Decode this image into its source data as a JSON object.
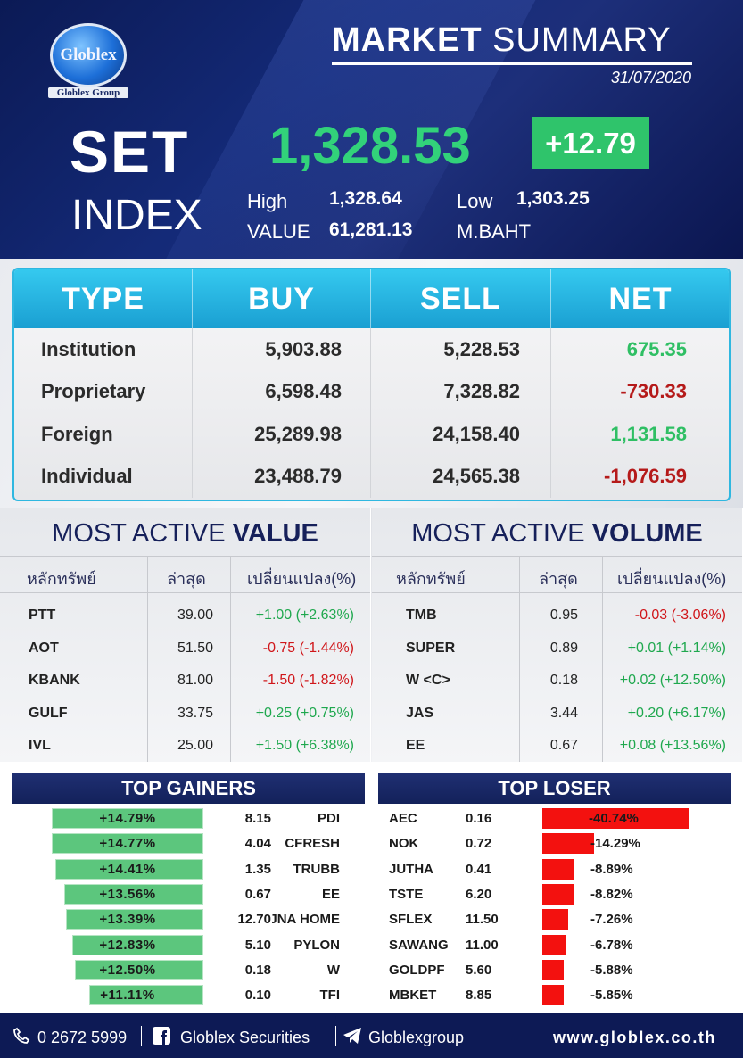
{
  "brand": {
    "logo_text": "Globlex",
    "group": "Globlex Group"
  },
  "header": {
    "title_bold": "MARKET",
    "title_rest": "SUMMARY",
    "date": "31/07/2020"
  },
  "index": {
    "label1": "SET",
    "label2": "INDEX",
    "value": "1,328.53",
    "change": "+12.79",
    "high_label": "High",
    "high": "1,328.64",
    "low_label": "Low",
    "low": "1,303.25",
    "value_label": "VALUE",
    "traded_value": "61,281.13",
    "unit": "M.BAHT"
  },
  "flow_table": {
    "headers": [
      "TYPE",
      "BUY",
      "SELL",
      "NET"
    ],
    "rows": [
      {
        "type": "Institution",
        "buy": "5,903.88",
        "sell": "5,228.53",
        "net": "675.35"
      },
      {
        "type": "Proprietary",
        "buy": "6,598.48",
        "sell": "7,328.82",
        "net": "-730.33"
      },
      {
        "type": "Foreign",
        "buy": "25,289.98",
        "sell": "24,158.40",
        "net": "1,131.58"
      },
      {
        "type": "Individual",
        "buy": "23,488.79",
        "sell": "24,565.38",
        "net": "-1,076.59"
      }
    ]
  },
  "most_active_value": {
    "title_plain": "MOST ACTIVE",
    "title_bold": "VALUE",
    "headers": [
      "หลักทรัพย์",
      "ล่าสุด",
      "เปลี่ยนแปลง(%)"
    ],
    "rows": [
      {
        "symbol": "PTT",
        "last": "39.00",
        "change": "+1.00 (+2.63%)"
      },
      {
        "symbol": "AOT",
        "last": "51.50",
        "change": "-0.75 (-1.44%)"
      },
      {
        "symbol": "KBANK",
        "last": "81.00",
        "change": "-1.50 (-1.82%)"
      },
      {
        "symbol": "GULF",
        "last": "33.75",
        "change": "+0.25 (+0.75%)"
      },
      {
        "symbol": "IVL",
        "last": "25.00",
        "change": "+1.50 (+6.38%)"
      }
    ]
  },
  "most_active_volume": {
    "title_plain": "MOST ACTIVE",
    "title_bold": "VOLUME",
    "headers": [
      "หลักทรัพย์",
      "ล่าสุด",
      "เปลี่ยนแปลง(%)"
    ],
    "rows": [
      {
        "symbol": "TMB",
        "last": "0.95",
        "change": "-0.03 (-3.06%)"
      },
      {
        "symbol": "SUPER",
        "last": "0.89",
        "change": "+0.01 (+1.14%)"
      },
      {
        "symbol": "W <C>",
        "last": "0.18",
        "change": "+0.02 (+12.50%)"
      },
      {
        "symbol": "JAS",
        "last": "3.44",
        "change": "+0.20 (+6.17%)"
      },
      {
        "symbol": "EE",
        "last": "0.67",
        "change": "+0.08 (+13.56%)"
      }
    ]
  },
  "top_gainers": {
    "title": "TOP GAINERS",
    "rows": [
      {
        "pct": "+14.79%",
        "price": "8.15",
        "symbol": "PDI"
      },
      {
        "pct": "+14.77%",
        "price": "4.04",
        "symbol": "CFRESH"
      },
      {
        "pct": "+14.41%",
        "price": "1.35",
        "symbol": "TRUBB"
      },
      {
        "pct": "+13.56%",
        "price": "0.67",
        "symbol": "EE"
      },
      {
        "pct": "+13.39%",
        "price": "12.70",
        "symbol": "ROJNA HOME"
      },
      {
        "pct": "+12.83%",
        "price": "5.10",
        "symbol": "PYLON"
      },
      {
        "pct": "+12.50%",
        "price": "0.18",
        "symbol": "W"
      },
      {
        "pct": "+11.11%",
        "price": "0.10",
        "symbol": "TFI"
      }
    ],
    "values": [
      14.79,
      14.77,
      14.41,
      13.56,
      13.39,
      12.83,
      12.5,
      11.11
    ]
  },
  "top_losers": {
    "title": "TOP LOSER",
    "rows": [
      {
        "symbol": "AEC",
        "price": "0.16",
        "pct": "-40.74%"
      },
      {
        "symbol": "NOK",
        "price": "0.72",
        "pct": "-14.29%"
      },
      {
        "symbol": "JUTHA",
        "price": "0.41",
        "pct": "-8.89%"
      },
      {
        "symbol": "TSTE",
        "price": "6.20",
        "pct": "-8.82%"
      },
      {
        "symbol": "SFLEX",
        "price": "11.50",
        "pct": "-7.26%"
      },
      {
        "symbol": "SAWANG",
        "price": "11.00",
        "pct": "-6.78%"
      },
      {
        "symbol": "GOLDPF",
        "price": "5.60",
        "pct": "-5.88%"
      },
      {
        "symbol": "MBKET",
        "price": "8.85",
        "pct": "-5.85%"
      }
    ],
    "values": [
      40.74,
      14.29,
      8.89,
      8.82,
      7.26,
      6.78,
      5.88,
      5.85
    ]
  },
  "footer": {
    "phone": "0 2672 5999",
    "facebook": "Globlex Securities",
    "telegram": "Globlexgroup",
    "website": "www.globlex.co.th",
    "phone_icon": "phone-icon",
    "facebook_icon": "facebook-icon",
    "telegram_icon": "telegram-icon"
  },
  "colors": {
    "positive": "#2fbf64",
    "negative": "#b51a1a",
    "gainer_bar": "#5cc67d",
    "loser_bar": "#f3110f",
    "navy": "#13215a",
    "accent": "#2fb7e0"
  }
}
